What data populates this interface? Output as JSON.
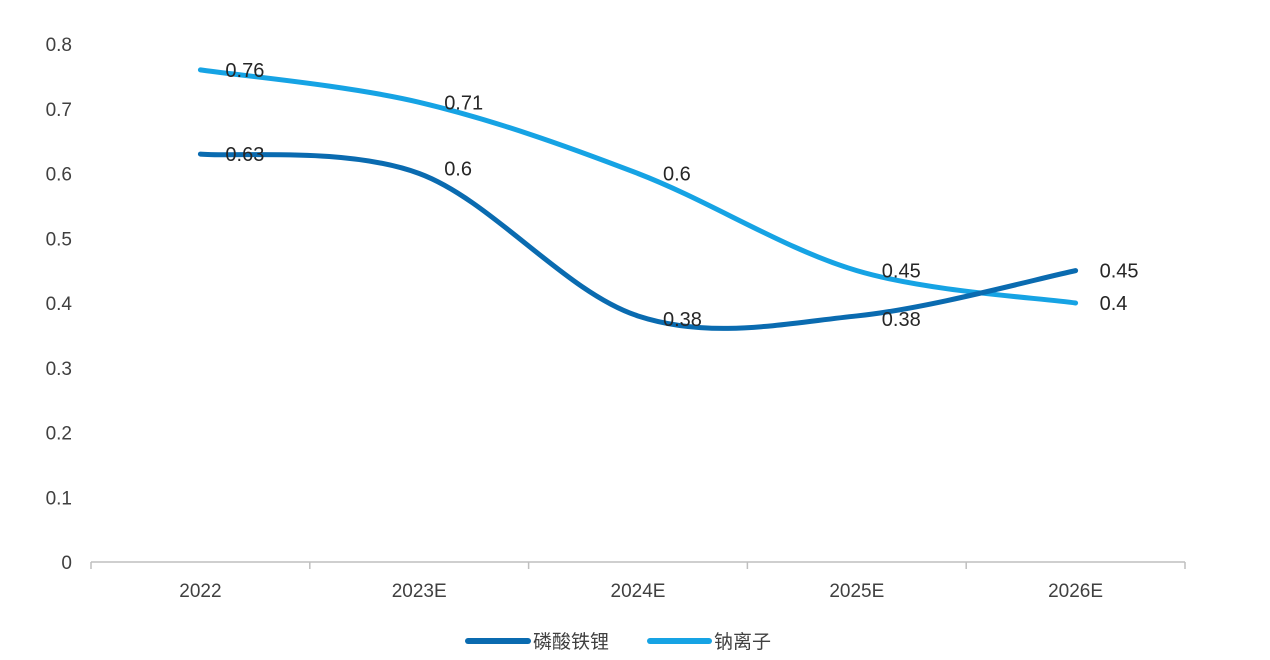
{
  "chart_data": {
    "type": "line",
    "categories": [
      "2022",
      "2023E",
      "2024E",
      "2025E",
      "2026E"
    ],
    "ylim": [
      0,
      0.8
    ],
    "yticks": [
      "0",
      "0.1",
      "0.2",
      "0.3",
      "0.4",
      "0.5",
      "0.6",
      "0.7",
      "0.8"
    ],
    "grid": false,
    "legend_position": "bottom",
    "smooth": true,
    "series": [
      {
        "name": "磷酸铁锂",
        "values": [
          0.63,
          0.6,
          0.38,
          0.38,
          0.45
        ],
        "labels": [
          "0.63",
          "0.6",
          "0.38",
          "0.38",
          "0.45"
        ],
        "color": "#0A6BB0"
      },
      {
        "name": "钠离子",
        "values": [
          0.76,
          0.71,
          0.6,
          0.45,
          0.4
        ],
        "labels": [
          "0.76",
          "0.71",
          "0.6",
          "0.45",
          "0.4"
        ],
        "color": "#16A3E4"
      }
    ]
  }
}
